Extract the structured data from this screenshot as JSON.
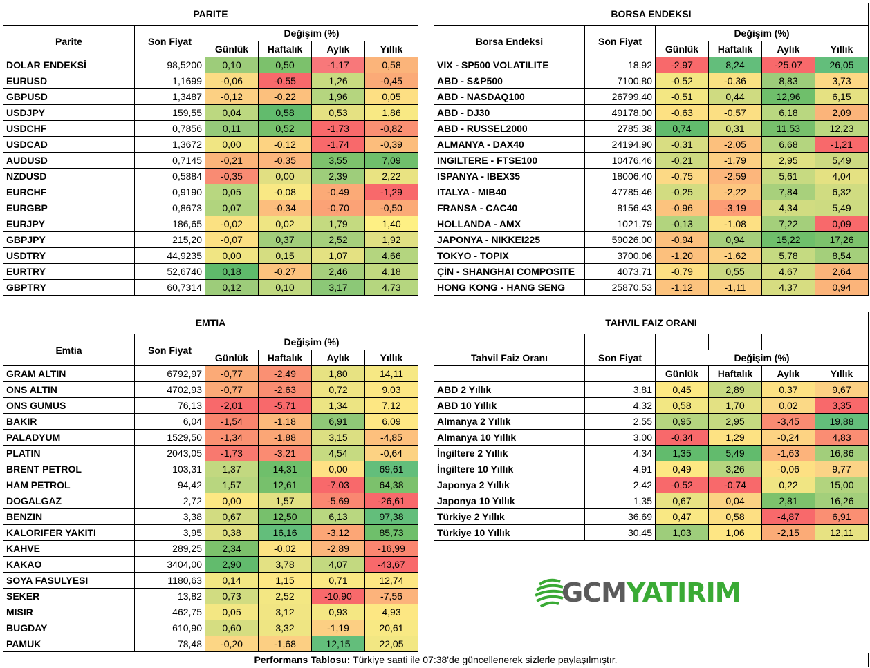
{
  "parite": {
    "title": "PARITE",
    "col_name": "Parite",
    "col_price": "Son Fiyat",
    "col_change": "Değişim (%)",
    "periods": [
      "Günlük",
      "Haftalık",
      "Aylık",
      "Yıllık"
    ],
    "rows": [
      [
        "DOLAR ENDEKSİ",
        "98,5200",
        "0,10",
        "0,50",
        "-1,17",
        "0,58"
      ],
      [
        "EURUSD",
        "1,1699",
        "-0,06",
        "-0,55",
        "1,26",
        "-0,45"
      ],
      [
        "GBPUSD",
        "1,3487",
        "-0,12",
        "-0,22",
        "1,96",
        "0,05"
      ],
      [
        "USDJPY",
        "159,55",
        "0,04",
        "0,58",
        "0,53",
        "1,86"
      ],
      [
        "USDCHF",
        "0,7856",
        "0,11",
        "0,52",
        "-1,73",
        "-0,82"
      ],
      [
        "USDCAD",
        "1,3672",
        "0,00",
        "-0,12",
        "-1,74",
        "-0,39"
      ],
      [
        "AUDUSD",
        "0,7145",
        "-0,21",
        "-0,35",
        "3,55",
        "7,09"
      ],
      [
        "NZDUSD",
        "0,5884",
        "-0,35",
        "0,00",
        "2,39",
        "2,22"
      ],
      [
        "EURCHF",
        "0,9190",
        "0,05",
        "-0,08",
        "-0,49",
        "-1,29"
      ],
      [
        "EURGBP",
        "0,8673",
        "0,07",
        "-0,34",
        "-0,70",
        "-0,50"
      ],
      [
        "EURJPY",
        "186,65",
        "-0,02",
        "0,02",
        "1,79",
        "1,40"
      ],
      [
        "GBPJPY",
        "215,20",
        "-0,07",
        "0,37",
        "2,52",
        "1,92"
      ],
      [
        "USDTRY",
        "44,9235",
        "0,00",
        "0,15",
        "1,07",
        "4,66"
      ],
      [
        "EURTRY",
        "52,6740",
        "0,18",
        "-0,27",
        "2,46",
        "4,18"
      ],
      [
        "GBPTRY",
        "60,7314",
        "0,12",
        "0,10",
        "3,17",
        "4,73"
      ]
    ],
    "colors": [
      [
        "#9dcc7a",
        "#7cc16c",
        "#f8787a",
        "#fbb47a"
      ],
      [
        "#fbdc84",
        "#f8696b",
        "#c8db80",
        "#fbaa77"
      ],
      [
        "#fcd083",
        "#fcc07d",
        "#b5d57f",
        "#fddf83"
      ],
      [
        "#bcd880",
        "#62bb6d",
        "#e5e182",
        "#f8e984"
      ],
      [
        "#95ca7a",
        "#77c06c",
        "#f8696b",
        "#fa9073"
      ],
      [
        "#f0e583",
        "#fdd382",
        "#f8696b",
        "#fcbd7c"
      ],
      [
        "#fbb47a",
        "#fcb67c",
        "#7dc26c",
        "#6fbf6b"
      ],
      [
        "#f98b73",
        "#e1df82",
        "#9ecd7b",
        "#e9e382"
      ],
      [
        "#b8d780",
        "#f9e884",
        "#fbaa77",
        "#f8696b"
      ],
      [
        "#b1d47e",
        "#fcbe7d",
        "#fba276",
        "#fbaa77"
      ],
      [
        "#fbe182",
        "#eee583",
        "#c4da80",
        "#fef084"
      ],
      [
        "#fce083",
        "#a2ce7b",
        "#a6cf7c",
        "#e0e083"
      ],
      [
        "#f0e583",
        "#d5dd81",
        "#e4e182",
        "#b4d57f"
      ],
      [
        "#5fba6b",
        "#fcc37e",
        "#a7cf7c",
        "#c1d980"
      ],
      [
        "#9dcc7a",
        "#c1d981",
        "#8cc877",
        "#b5d67f"
      ]
    ]
  },
  "borsa": {
    "title": "BORSA ENDEKSI",
    "col_name": "Borsa Endeksi",
    "col_price": "Son Fiyat",
    "col_change": "Değişim (%)",
    "periods": [
      "Günlük",
      "Haftalık",
      "Aylık",
      "Yıllık"
    ],
    "rows": [
      [
        "VIX  - SP500 VOLATILITE",
        "18,92",
        "-2,97",
        "8,24",
        "-25,07",
        "26,05"
      ],
      [
        "ABD - S&P500",
        "7100,80",
        "-0,52",
        "-0,36",
        "8,83",
        "3,73"
      ],
      [
        "ABD - NASDAQ100",
        "26799,40",
        "-0,51",
        "0,44",
        "12,96",
        "6,15"
      ],
      [
        "ABD - DJ30",
        "49178,00",
        "-0,63",
        "-0,57",
        "6,18",
        "2,09"
      ],
      [
        "ABD - RUSSEL2000",
        "2785,38",
        "0,74",
        "0,31",
        "11,53",
        "12,23"
      ],
      [
        "ALMANYA - DAX40",
        "24194,90",
        "-0,31",
        "-2,05",
        "6,68",
        "-1,21"
      ],
      [
        "INGILTERE - FTSE100",
        "10476,46",
        "-0,21",
        "-1,79",
        "2,95",
        "5,49"
      ],
      [
        "ISPANYA - IBEX35",
        "18006,40",
        "-0,75",
        "-2,59",
        "5,61",
        "4,04"
      ],
      [
        "ITALYA - MIB40",
        "47785,46",
        "-0,25",
        "-2,22",
        "7,84",
        "6,32"
      ],
      [
        "FRANSA - CAC40",
        "8156,43",
        "-0,96",
        "-3,19",
        "4,34",
        "5,49"
      ],
      [
        "HOLLANDA - AMX",
        "1021,79",
        "-0,13",
        "-1,08",
        "7,22",
        "0,09"
      ],
      [
        "JAPONYA - NIKKEI225",
        "59026,00",
        "-0,94",
        "0,94",
        "15,22",
        "17,26"
      ],
      [
        "TOKYO - TOPIX",
        "3700,06",
        "-1,20",
        "-1,62",
        "5,78",
        "8,54"
      ],
      [
        "ÇİN - SHANGHAI COMPOSITE",
        "4073,71",
        "-0,79",
        "0,55",
        "4,67",
        "2,64"
      ],
      [
        "HONG KONG - HANG SENG",
        "25870,53",
        "-1,12",
        "-1,11",
        "4,37",
        "0,94"
      ]
    ],
    "colors": [
      [
        "#f8696b",
        "#63be7b",
        "#f8696b",
        "#63be7b"
      ],
      [
        "#f3e783",
        "#fbe283",
        "#9dcc7a",
        "#fdd884"
      ],
      [
        "#f3e783",
        "#cfdb81",
        "#6fbf6b",
        "#e5e182"
      ],
      [
        "#fde183",
        "#fbdf83",
        "#b9d780",
        "#fbb47a"
      ],
      [
        "#62bb6d",
        "#d5dd81",
        "#77c06c",
        "#bcd880"
      ],
      [
        "#d8dd82",
        "#fcc07d",
        "#b4d57f",
        "#f8696b"
      ],
      [
        "#cddb81",
        "#fccf83",
        "#e0e183",
        "#cdda81"
      ],
      [
        "#fcd985",
        "#fcb67c",
        "#c7da81",
        "#e4e182"
      ],
      [
        "#d2dc81",
        "#fcc67f",
        "#a8d07c",
        "#d0dc81"
      ],
      [
        "#fcc37e",
        "#fc9c75",
        "#d1dc81",
        "#cddb81"
      ],
      [
        "#b2d47e",
        "#fde083",
        "#a4cf7b",
        "#f8696b"
      ],
      [
        "#fcc07d",
        "#a6cf7c",
        "#6fbf6b",
        "#7dc26c"
      ],
      [
        "#fcc07d",
        "#fcd083",
        "#c5da81",
        "#a4cf7b"
      ],
      [
        "#fde083",
        "#cad981",
        "#d4dd81",
        "#fbb47a"
      ],
      [
        "#fcc37e",
        "#fccf83",
        "#d7dd81",
        "#fbb47a"
      ]
    ]
  },
  "emtia": {
    "title": "EMTIA",
    "col_name": "Emtia",
    "col_price": "Son Fiyat",
    "col_change": "Değişim (%)",
    "periods": [
      "Günlük",
      "Haftalık",
      "Aylık",
      "Yıllık"
    ],
    "rows": [
      [
        "GRAM ALTIN",
        "6792,97",
        "-0,77",
        "-2,49",
        "1,80",
        "14,11"
      ],
      [
        "ONS ALTIN",
        "4702,93",
        "-0,77",
        "-2,63",
        "0,72",
        "9,03"
      ],
      [
        "ONS GUMUS",
        "76,13",
        "-2,01",
        "-5,71",
        "1,34",
        "7,12"
      ],
      [
        "BAKIR",
        "6,04",
        "-1,54",
        "-1,18",
        "6,91",
        "6,09"
      ],
      [
        "PALADYUM",
        "1529,50",
        "-1,34",
        "-1,88",
        "3,15",
        "-4,85"
      ],
      [
        "PLATIN",
        "2043,05",
        "-1,73",
        "-3,21",
        "4,54",
        "-0,64"
      ],
      [
        "BRENT PETROL",
        "103,31",
        "1,37",
        "14,31",
        "0,00",
        "69,61"
      ],
      [
        "HAM PETROL",
        "94,42",
        "1,57",
        "12,61",
        "-7,03",
        "64,38"
      ],
      [
        "DOGALGAZ",
        "2,72",
        "0,00",
        "1,57",
        "-5,69",
        "-26,61"
      ],
      [
        "BENZIN",
        "3,38",
        "0,67",
        "12,50",
        "6,13",
        "97,38"
      ],
      [
        "KALORIFER YAKITI",
        "3,95",
        "0,38",
        "16,16",
        "-3,12",
        "85,73"
      ],
      [
        "KAHVE",
        "289,25",
        "2,34",
        "-0,02",
        "-2,89",
        "-16,99"
      ],
      [
        "KAKAO",
        "3404,00",
        "2,90",
        "3,78",
        "4,07",
        "-43,67"
      ],
      [
        "SOYA FASULYESI",
        "1180,63",
        "0,14",
        "1,15",
        "0,71",
        "12,74"
      ],
      [
        "SEKER",
        "13,82",
        "0,73",
        "2,52",
        "-10,90",
        "-7,56"
      ],
      [
        "MISIR",
        "462,75",
        "0,05",
        "3,12",
        "0,93",
        "4,93"
      ],
      [
        "BUGDAY",
        "610,90",
        "0,60",
        "3,32",
        "-1,19",
        "20,61"
      ],
      [
        "PAMUK",
        "78,48",
        "-0,20",
        "-1,68",
        "12,15",
        "22,05"
      ]
    ],
    "colors": [
      [
        "#fbaa77",
        "#fa9073",
        "#e7e282",
        "#f6e884"
      ],
      [
        "#fbaa77",
        "#fa8d72",
        "#f0e483",
        "#fde783"
      ],
      [
        "#f8696b",
        "#f8696b",
        "#ece483",
        "#fde783"
      ],
      [
        "#f9856e",
        "#fcb97b",
        "#8fc877",
        "#fee884"
      ],
      [
        "#fa9172",
        "#fba676",
        "#dcdf82",
        "#fdc07d"
      ],
      [
        "#f8796f",
        "#fa8b72",
        "#c6da81",
        "#fcd283"
      ],
      [
        "#c2d880",
        "#6fbf6b",
        "#fee184",
        "#63be7b"
      ],
      [
        "#b8d67f",
        "#77c06c",
        "#f8696b",
        "#7cc16c"
      ],
      [
        "#fde883",
        "#e3e183",
        "#fa8771",
        "#f8696b"
      ],
      [
        "#d2dc81",
        "#77c06c",
        "#b9d780",
        "#63be7b"
      ],
      [
        "#e1e083",
        "#63be7b",
        "#fca676",
        "#6fbf6b"
      ],
      [
        "#7cc16c",
        "#fde383",
        "#fcb67c",
        "#fa8670"
      ],
      [
        "#62bb6d",
        "#e3e183",
        "#c3d980",
        "#f8696b"
      ],
      [
        "#f3e783",
        "#fee783",
        "#fae883",
        "#fde783"
      ],
      [
        "#d1dc81",
        "#f3e783",
        "#f8696b",
        "#fcb37b"
      ],
      [
        "#f3e783",
        "#f1e583",
        "#f4e783",
        "#fde783"
      ],
      [
        "#d5dd81",
        "#eee583",
        "#fccf83",
        "#f8e984"
      ],
      [
        "#fcd685",
        "#fccf83",
        "#63be7b",
        "#f2e783"
      ]
    ]
  },
  "tahvil": {
    "title": "TAHVIL FAIZ ORANI",
    "col_name": "Tahvil Faiz Oranı",
    "col_price": "Son Fiyat",
    "col_change": "Değişim (%)",
    "periods": [
      "Günlük",
      "Haftalık",
      "Aylık",
      "Yıllık"
    ],
    "rows": [
      [
        "ABD 2 Yıllık",
        "3,81",
        "0,45",
        "2,89",
        "0,37",
        "9,67"
      ],
      [
        "ABD 10 Yıllık",
        "4,32",
        "0,58",
        "1,70",
        "0,02",
        "3,35"
      ],
      [
        "Almanya 2 Yıllık",
        "2,55",
        "0,95",
        "2,95",
        "-3,45",
        "19,88"
      ],
      [
        "Almanya 10 Yıllık",
        "3,00",
        "-0,34",
        "1,29",
        "-0,24",
        "4,83"
      ],
      [
        "İngiltere 2 Yıllık",
        "4,34",
        "1,35",
        "5,49",
        "-1,63",
        "16,86"
      ],
      [
        "İngiltere 10 Yıllık",
        "4,91",
        "0,49",
        "3,26",
        "-0,06",
        "9,77"
      ],
      [
        "Japonya 2 Yıllık",
        "2,42",
        "-0,52",
        "-0,74",
        "0,22",
        "15,00"
      ],
      [
        "Japonya 10 Yıllık",
        "1,35",
        "0,67",
        "0,04",
        "2,81",
        "16,26"
      ],
      [
        "Türkiye 2 Yıllık",
        "36,69",
        "0,47",
        "0,58",
        "-4,87",
        "6,91"
      ],
      [
        "Türkiye 10 Yıllık",
        "30,45",
        "1,03",
        "1,06",
        "-2,15",
        "12,11"
      ]
    ],
    "colors": [
      [
        "#fde983",
        "#c7da81",
        "#fde183",
        "#fcd083"
      ],
      [
        "#f2e783",
        "#e3e183",
        "#fbd986",
        "#f8696b"
      ],
      [
        "#b5d57f",
        "#c5da81",
        "#fa8b72",
        "#63be7b"
      ],
      [
        "#f8696b",
        "#fde283",
        "#fdd383",
        "#fa8d73"
      ],
      [
        "#62bb6d",
        "#62bb6d",
        "#fcb37b",
        "#a2ce7b"
      ],
      [
        "#fde883",
        "#b5d57f",
        "#fde083",
        "#fbd386"
      ],
      [
        "#f8696b",
        "#f8696b",
        "#f0e583",
        "#b2d47e"
      ],
      [
        "#e8e283",
        "#fbd283",
        "#7dc26c",
        "#a3cf7b"
      ],
      [
        "#f9e884",
        "#fddf83",
        "#f8696b",
        "#fa8f73"
      ],
      [
        "#9ecd7b",
        "#fee684",
        "#fbab77",
        "#e7e282"
      ]
    ]
  },
  "footer": {
    "bold": "Performans Tablosu:",
    "text": " Türkiye saati ile 07:38'de güncellenerek sizlerle paylaşılmıştır."
  },
  "logo": {
    "part1": "GCM",
    "part2": "YATIRIM"
  }
}
